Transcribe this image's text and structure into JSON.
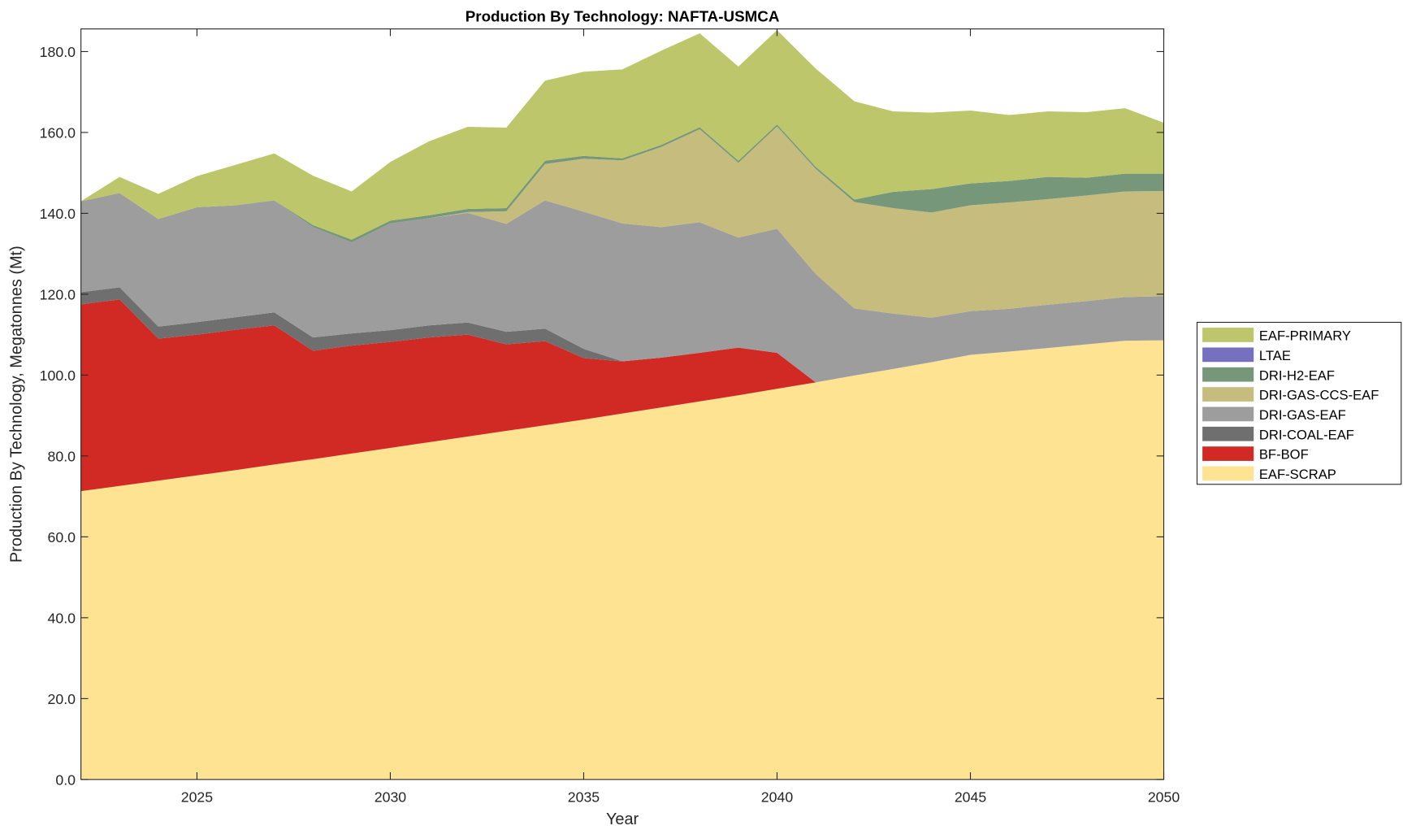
{
  "chart_data": {
    "type": "area",
    "stacked": true,
    "title": "Production By Technology: NAFTA-USMCA",
    "xlabel": "Year",
    "ylabel": "Production By Technology, Megatonnes (Mt)",
    "xlim": [
      2022,
      2050
    ],
    "ylim": [
      0,
      185.6
    ],
    "xticks": [
      2025,
      2030,
      2035,
      2040,
      2045,
      2050
    ],
    "yticks": [
      "0.0",
      "20.0",
      "40.0",
      "60.0",
      "80.0",
      "100.0",
      "120.0",
      "140.0",
      "160.0",
      "180.0"
    ],
    "grid": false,
    "legend_position": "outside-right",
    "x": [
      2022,
      2023,
      2024,
      2025,
      2026,
      2027,
      2028,
      2029,
      2030,
      2031,
      2032,
      2033,
      2034,
      2035,
      2036,
      2037,
      2038,
      2039,
      2040,
      2041,
      2042,
      2043,
      2044,
      2045,
      2046,
      2047,
      2048,
      2049,
      2050
    ],
    "series": [
      {
        "name": "EAF-SCRAP",
        "color": "#fde392",
        "values": [
          71.3,
          72.6,
          73.9,
          75.2,
          76.5,
          77.9,
          79.2,
          80.6,
          82.0,
          83.4,
          84.8,
          86.2,
          87.6,
          89.0,
          90.5,
          92.0,
          93.5,
          95.0,
          96.6,
          98.2,
          99.9,
          101.5,
          103.2,
          105.0,
          105.8,
          106.7,
          107.6,
          108.5,
          108.6
        ]
      },
      {
        "name": "BF-BOF",
        "color": "#d12a24",
        "values": [
          46.2,
          46.1,
          35.1,
          34.8,
          34.7,
          34.4,
          26.8,
          26.7,
          26.2,
          25.9,
          25.2,
          21.4,
          20.8,
          15.2,
          12.9,
          12.3,
          12.0,
          11.8,
          8.9,
          0,
          0,
          0,
          0,
          0,
          0,
          0,
          0,
          0,
          0
        ]
      },
      {
        "name": "DRI-COAL-EAF",
        "color": "#6f6f6f",
        "values": [
          3.0,
          3.0,
          3.0,
          3.1,
          3.1,
          3.2,
          3.3,
          3.0,
          2.9,
          3.0,
          3.0,
          3.1,
          3.1,
          2.3,
          0,
          0,
          0,
          0,
          0,
          0,
          0,
          0,
          0,
          0,
          0,
          0,
          0,
          0,
          0
        ]
      },
      {
        "name": "DRI-GAS-EAF",
        "color": "#9d9d9d",
        "values": [
          22.5,
          23.3,
          26.6,
          28.4,
          27.7,
          27.7,
          27.3,
          22.5,
          26.4,
          26.5,
          27.1,
          26.7,
          31.7,
          33.9,
          34.1,
          32.3,
          32.3,
          27.2,
          30.7,
          26.8,
          16.6,
          13.7,
          11.0,
          10.8,
          10.6,
          10.7,
          10.7,
          10.8,
          10.9
        ]
      },
      {
        "name": "DRI-GAS-CCS-EAF",
        "color": "#c6bc7e",
        "values": [
          0,
          0,
          0,
          0,
          0,
          0,
          0,
          0,
          0,
          0,
          0.2,
          3.1,
          9.0,
          13.1,
          15.6,
          19.8,
          23.0,
          18.5,
          25.3,
          26.0,
          26.3,
          26.1,
          26.0,
          26.2,
          26.3,
          26.1,
          26.1,
          26.1,
          26.0
        ]
      },
      {
        "name": "DRI-H2-EAF",
        "color": "#76977a",
        "values": [
          0,
          0,
          0,
          0,
          0,
          0,
          0.5,
          0.7,
          0.7,
          0.7,
          0.8,
          0.8,
          0.8,
          0.7,
          0.5,
          0.5,
          0.5,
          0.5,
          0.5,
          0.5,
          0.6,
          4.0,
          5.8,
          5.4,
          5.3,
          5.5,
          4.4,
          4.4,
          4.3
        ]
      },
      {
        "name": "LTAE",
        "color": "#7570bf",
        "values": [
          0,
          0,
          0,
          0,
          0,
          0,
          0,
          0,
          0,
          0,
          0,
          0,
          0,
          0,
          0,
          0,
          0,
          0,
          0,
          0,
          0,
          0,
          0,
          0,
          0,
          0,
          0,
          0,
          0
        ]
      },
      {
        "name": "EAF-PRIMARY",
        "color": "#bdc66a",
        "values": [
          0,
          4.0,
          6.2,
          7.7,
          10.0,
          11.6,
          12.2,
          11.9,
          14.5,
          18.3,
          20.3,
          19.9,
          19.8,
          20.8,
          22.0,
          23.3,
          23.2,
          23.3,
          23.3,
          24.3,
          24.3,
          19.9,
          18.9,
          18.0,
          16.3,
          16.2,
          16.2,
          16.2,
          12.6
        ]
      }
    ],
    "legend_order": [
      "EAF-PRIMARY",
      "LTAE",
      "DRI-H2-EAF",
      "DRI-GAS-CCS-EAF",
      "DRI-GAS-EAF",
      "DRI-COAL-EAF",
      "BF-BOF",
      "EAF-SCRAP"
    ]
  }
}
